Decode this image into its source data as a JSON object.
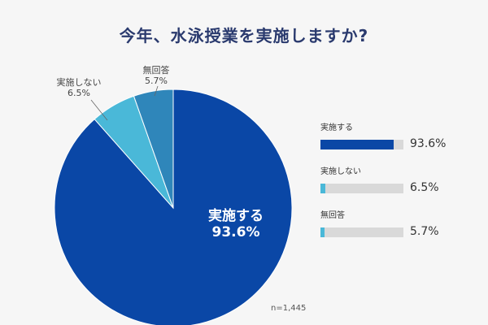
{
  "title": "今年、水泳授業を実施しますか?",
  "sample_note": "n=1,445",
  "colors": {
    "implement": "#0a47a6",
    "not_implement": "#4ab8d8",
    "no_answer": "#2f86ba",
    "track": "#d9d9d9"
  },
  "callouts": {
    "not_implement": {
      "label": "実施しない",
      "value": "6.5%"
    },
    "no_answer": {
      "label": "無回答",
      "value": "5.7%"
    },
    "implement": {
      "label": "実施する",
      "value": "93.6%"
    }
  },
  "legend": [
    {
      "label": "実施する",
      "value": "93.6%",
      "color": "#0a47a6"
    },
    {
      "label": "実施しない",
      "value": "6.5%",
      "color": "#4ab8d8"
    },
    {
      "label": "無回答",
      "value": "5.7%",
      "color": "#4ab8d8"
    }
  ],
  "chart_data": {
    "type": "pie",
    "title": "今年、水泳授業を実施しますか?",
    "categories": [
      "実施する",
      "実施しない",
      "無回答"
    ],
    "values": [
      93.6,
      6.5,
      5.7
    ],
    "colors": [
      "#0a47a6",
      "#4ab8d8",
      "#2f86ba"
    ],
    "note": "n=1,445"
  }
}
